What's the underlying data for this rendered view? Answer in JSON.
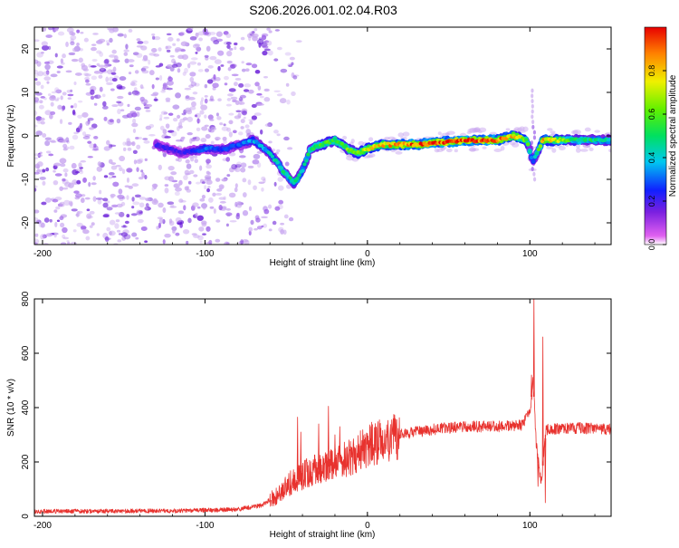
{
  "title": "S206.2026.001.02.04.R03",
  "colors": {
    "snr_line": "#e8322e",
    "speckle_light": "#c9a8f0",
    "speckle_mid": "#9a5ce8",
    "speckle_dark": "#6a1fd8",
    "axis": "#000000"
  },
  "chart_data": [
    {
      "type": "heatmap",
      "name": "spectrogram",
      "xlabel": "Height of straight line (km)",
      "ylabel": "Frequency (Hz)",
      "xlim": [
        -205,
        150
      ],
      "ylim": [
        -25,
        25
      ],
      "xticks": [
        -200,
        -100,
        0,
        100
      ],
      "yticks": [
        -20,
        -10,
        0,
        10,
        20
      ],
      "xtick_labels": [
        "-200",
        "-100",
        "0",
        "100"
      ],
      "ytick_labels": [
        "-20",
        "-10",
        "0",
        "10",
        "20"
      ],
      "colorbar": {
        "label": "Normalized spectral amplitude",
        "range": [
          0,
          1
        ],
        "ticks": [
          0.0,
          0.2,
          0.4,
          0.6,
          0.8
        ],
        "tick_labels": [
          "0.0",
          "0.2",
          "0.4",
          "0.6",
          "0.8"
        ]
      },
      "ridge": {
        "x": [
          -130,
          -115,
          -100,
          -88,
          -78,
          -70,
          -60,
          -52,
          -45,
          -40,
          -35,
          -28,
          -20,
          -12,
          -6,
          0,
          10,
          30,
          60,
          80,
          90,
          98,
          102,
          108,
          130,
          150
        ],
        "y": [
          -2,
          -4,
          -3,
          -3,
          -2,
          -1,
          -4,
          -8,
          -11,
          -8,
          -3,
          -2,
          -1,
          -3,
          -4,
          -3,
          -2,
          -2,
          -1,
          -1,
          0,
          -1,
          -6,
          -1,
          -1,
          -1
        ],
        "amplitude": [
          0.2,
          0.2,
          0.3,
          0.25,
          0.3,
          0.35,
          0.4,
          0.45,
          0.45,
          0.4,
          0.5,
          0.55,
          0.55,
          0.6,
          0.65,
          0.7,
          0.8,
          0.9,
          0.95,
          0.9,
          0.8,
          0.6,
          0.3,
          0.8,
          0.5,
          0.45
        ]
      },
      "artifact_x": 102
    },
    {
      "type": "line",
      "name": "snr",
      "xlabel": "Height of straight line (km)",
      "ylabel": "SNR (10 * v/v)",
      "xlim": [
        -205,
        150
      ],
      "ylim": [
        0,
        800
      ],
      "xticks": [
        -200,
        -100,
        0,
        100
      ],
      "yticks": [
        0,
        200,
        400,
        600,
        800
      ],
      "xtick_labels": [
        "-200",
        "-100",
        "0",
        "100"
      ],
      "ytick_labels": [
        "0",
        "200",
        "400",
        "600",
        "800"
      ],
      "envelope": {
        "x": [
          -205,
          -120,
          -80,
          -65,
          -55,
          -48,
          -42,
          -38,
          -32,
          -28,
          -20,
          -10,
          0,
          20,
          40,
          60,
          80,
          95,
          100,
          102,
          104,
          107,
          110,
          130,
          150
        ],
        "y": [
          18,
          20,
          25,
          40,
          80,
          120,
          140,
          160,
          170,
          175,
          190,
          220,
          260,
          300,
          320,
          330,
          330,
          335,
          380,
          500,
          260,
          120,
          320,
          325,
          320
        ]
      },
      "spikes": [
        {
          "x": -43,
          "y": 365
        },
        {
          "x": -41,
          "y": 310
        },
        {
          "x": -30,
          "y": 340
        },
        {
          "x": -24,
          "y": 405
        },
        {
          "x": -20,
          "y": 300
        },
        {
          "x": -17,
          "y": 330
        },
        {
          "x": 101,
          "y": 520
        },
        {
          "x": 102.5,
          "y": 800
        },
        {
          "x": 105,
          "y": 110
        },
        {
          "x": 108,
          "y": 660
        },
        {
          "x": 109.5,
          "y": 50
        }
      ]
    }
  ]
}
